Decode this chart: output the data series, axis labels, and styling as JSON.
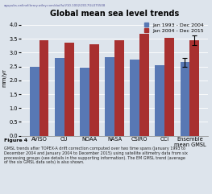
{
  "title": "Global mean sea level trends",
  "ylabel": "mm/yr",
  "categories": [
    "AVISO",
    "CU",
    "NOAA",
    "NASA",
    "CSIRO",
    "CCI",
    "Ensemble\nmean GMSL"
  ],
  "series1_label": "Jan 1993 - Dec 2004",
  "series2_label": "Jan 2004 - Dec 2015",
  "series1_values": [
    2.5,
    2.8,
    2.47,
    2.83,
    2.75,
    2.55,
    2.65
  ],
  "series2_values": [
    3.45,
    3.35,
    3.3,
    3.45,
    3.67,
    3.53,
    3.45
  ],
  "series1_errors": [
    0.0,
    0.0,
    0.0,
    0.0,
    0.0,
    0.0,
    0.17
  ],
  "series2_errors": [
    0.0,
    0.0,
    0.0,
    0.0,
    0.0,
    0.0,
    0.18
  ],
  "color1": "#5878b4",
  "color2": "#a83030",
  "ylim": [
    0,
    4.2
  ],
  "yticks": [
    0,
    0.5,
    1.0,
    1.5,
    2.0,
    2.5,
    3.0,
    3.5,
    4.0
  ],
  "bg_color": "#dde4ec",
  "plot_bg_color": "#dde4ec",
  "title_fontsize": 7.0,
  "axis_fontsize": 5.0,
  "tick_fontsize": 4.8,
  "legend_fontsize": 4.5,
  "url_text": "agupubs.onlinelibrary.wiley.com/doi/full/10.1002/2017GL075508"
}
